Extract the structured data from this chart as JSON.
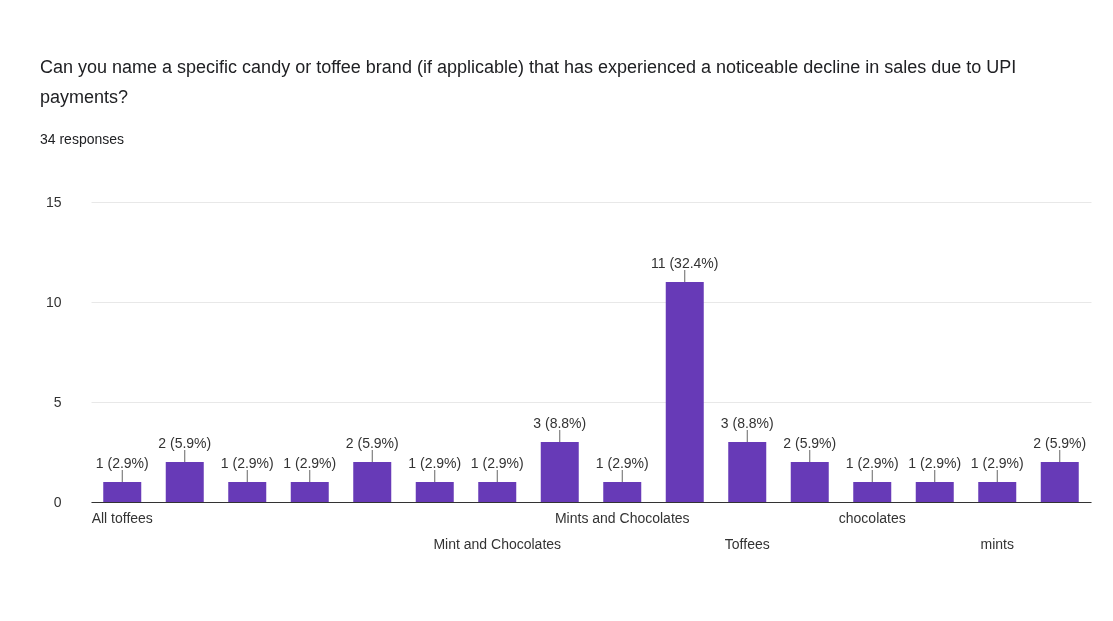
{
  "chart_data": {
    "type": "bar",
    "title": "Can you name a specific candy or toffee brand (if applicable) that has experienced a noticeable decline in sales due to UPI payments?",
    "subtitle": "34 responses",
    "categories": [
      "All toffees",
      null,
      null,
      null,
      null,
      null,
      "Mint and Chocolates",
      null,
      "Mints and Chocolates",
      null,
      "Toffees",
      null,
      "chocolates",
      null,
      "mints",
      null
    ],
    "values": [
      1,
      2,
      1,
      1,
      2,
      1,
      1,
      3,
      1,
      11,
      3,
      2,
      1,
      1,
      1,
      2
    ],
    "value_labels": [
      "1 (2.9%)",
      "2 (5.9%)",
      "1 (2.9%)",
      "1 (2.9%)",
      "2 (5.9%)",
      "1 (2.9%)",
      "1 (2.9%)",
      "3 (8.8%)",
      "1 (2.9%)",
      "11 (32.4%)",
      "3 (8.8%)",
      "2 (5.9%)",
      "1 (2.9%)",
      "1 (2.9%)",
      "1 (2.9%)",
      "2 (5.9%)"
    ],
    "color": "#673ab7",
    "ylim": [
      0,
      15
    ],
    "yticks": [
      0,
      5,
      10,
      15
    ],
    "grid": "y"
  }
}
